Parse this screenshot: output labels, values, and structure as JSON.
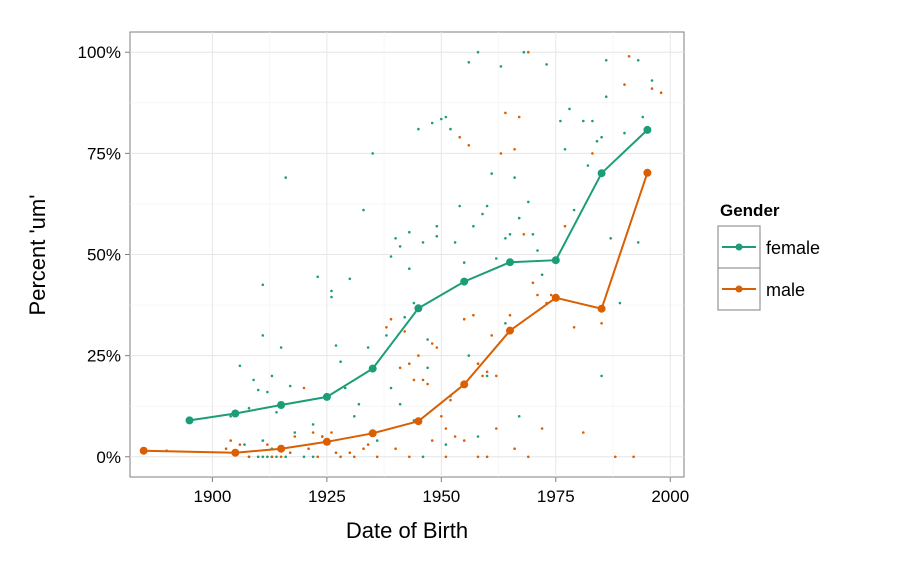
{
  "chart_data": {
    "type": "scatter",
    "title": "",
    "xlabel": "Date of Birth",
    "ylabel": "Percent 'um'",
    "xlim": [
      1882,
      2003
    ],
    "ylim": [
      -0.05,
      1.05
    ],
    "x_ticks": [
      1900,
      1925,
      1950,
      1975,
      2000
    ],
    "x_tick_labels": [
      "1900",
      "1925",
      "1950",
      "1975",
      "2000"
    ],
    "y_ticks": [
      0,
      0.25,
      0.5,
      0.75,
      1.0
    ],
    "y_tick_labels": [
      "0%",
      "25%",
      "50%",
      "75%",
      "100%"
    ],
    "grid": true,
    "legend": {
      "title": "Gender",
      "position": "right"
    },
    "series": [
      {
        "name": "female",
        "color": "#1B9E77",
        "line": {
          "x": [
            1895,
            1905,
            1915,
            1925,
            1935,
            1945,
            1955,
            1965,
            1975,
            1985,
            1995
          ],
          "y": [
            0.09,
            0.107,
            0.128,
            0.148,
            0.218,
            0.367,
            0.433,
            0.481,
            0.486,
            0.701,
            0.808
          ]
        },
        "points": [
          [
            1906,
            0.225
          ],
          [
            1909,
            0.19
          ],
          [
            1911,
            0.425
          ],
          [
            1911,
            0.3
          ],
          [
            1915,
            0.27
          ],
          [
            1916,
            0.69
          ],
          [
            1913,
            0.2
          ],
          [
            1917,
            0.175
          ],
          [
            1910,
            0.165
          ],
          [
            1912,
            0.16
          ],
          [
            1908,
            0.12
          ],
          [
            1914,
            0.11
          ],
          [
            1904,
            0.1
          ],
          [
            1918,
            0.06
          ],
          [
            1911,
            0.04
          ],
          [
            1907,
            0.03
          ],
          [
            1913,
            0.02
          ],
          [
            1908,
            0.0
          ],
          [
            1910,
            0.0
          ],
          [
            1911,
            0.0
          ],
          [
            1912,
            0.0
          ],
          [
            1913,
            0.0
          ],
          [
            1914,
            0.0
          ],
          [
            1916,
            0.0
          ],
          [
            1920,
            0.0
          ],
          [
            1922,
            0.0
          ],
          [
            1923,
            0.445
          ],
          [
            1926,
            0.41
          ],
          [
            1926,
            0.395
          ],
          [
            1927,
            0.275
          ],
          [
            1928,
            0.235
          ],
          [
            1930,
            0.44
          ],
          [
            1933,
            0.61
          ],
          [
            1934,
            0.27
          ],
          [
            1935,
            0.75
          ],
          [
            1929,
            0.17
          ],
          [
            1932,
            0.13
          ],
          [
            1922,
            0.08
          ],
          [
            1924,
            0.05
          ],
          [
            1931,
            0.1
          ],
          [
            1936,
            0.04
          ],
          [
            1938,
            0.3
          ],
          [
            1939,
            0.495
          ],
          [
            1940,
            0.54
          ],
          [
            1941,
            0.52
          ],
          [
            1942,
            0.345
          ],
          [
            1943,
            0.555
          ],
          [
            1943,
            0.465
          ],
          [
            1944,
            0.38
          ],
          [
            1945,
            0.81
          ],
          [
            1946,
            0.53
          ],
          [
            1947,
            0.29
          ],
          [
            1948,
            0.825
          ],
          [
            1949,
            0.57
          ],
          [
            1949,
            0.545
          ],
          [
            1950,
            0.835
          ],
          [
            1951,
            0.84
          ],
          [
            1952,
            0.81
          ],
          [
            1953,
            0.53
          ],
          [
            1954,
            0.62
          ],
          [
            1955,
            0.48
          ],
          [
            1956,
            0.975
          ],
          [
            1957,
            0.57
          ],
          [
            1958,
            1.0
          ],
          [
            1959,
            0.6
          ],
          [
            1960,
            0.62
          ],
          [
            1961,
            0.7
          ],
          [
            1962,
            0.49
          ],
          [
            1963,
            0.965
          ],
          [
            1964,
            0.54
          ],
          [
            1965,
            0.55
          ],
          [
            1966,
            0.69
          ],
          [
            1967,
            0.59
          ],
          [
            1968,
            1.0
          ],
          [
            1969,
            0.63
          ],
          [
            1970,
            0.55
          ],
          [
            1971,
            0.51
          ],
          [
            1972,
            0.45
          ],
          [
            1973,
            0.97
          ],
          [
            1976,
            0.83
          ],
          [
            1977,
            0.76
          ],
          [
            1978,
            0.86
          ],
          [
            1979,
            0.61
          ],
          [
            1981,
            0.83
          ],
          [
            1982,
            0.72
          ],
          [
            1983,
            0.83
          ],
          [
            1984,
            0.78
          ],
          [
            1985,
            0.79
          ],
          [
            1986,
            0.89
          ],
          [
            1986,
            0.98
          ],
          [
            1987,
            0.54
          ],
          [
            1989,
            0.38
          ],
          [
            1990,
            0.8
          ],
          [
            1993,
            0.53
          ],
          [
            1993,
            0.98
          ],
          [
            1994,
            0.84
          ],
          [
            1996,
            0.93
          ],
          [
            1939,
            0.17
          ],
          [
            1941,
            0.13
          ],
          [
            1944,
            0.09
          ],
          [
            1947,
            0.22
          ],
          [
            1952,
            0.15
          ],
          [
            1956,
            0.25
          ],
          [
            1960,
            0.2
          ],
          [
            1964,
            0.33
          ],
          [
            1967,
            0.1
          ],
          [
            1985,
            0.2
          ],
          [
            1946,
            0.0
          ],
          [
            1951,
            0.03
          ],
          [
            1958,
            0.05
          ]
        ]
      },
      {
        "name": "male",
        "color": "#D95F02",
        "line": {
          "x": [
            1885,
            1905,
            1915,
            1925,
            1935,
            1945,
            1955,
            1965,
            1975,
            1985,
            1995
          ],
          "y": [
            0.015,
            0.01,
            0.02,
            0.037,
            0.058,
            0.088,
            0.179,
            0.312,
            0.393,
            0.366,
            0.702
          ]
        },
        "points": [
          [
            1890,
            0.015
          ],
          [
            1903,
            0.02
          ],
          [
            1904,
            0.04
          ],
          [
            1906,
            0.03
          ],
          [
            1912,
            0.03
          ],
          [
            1915,
            0.0
          ],
          [
            1918,
            0.05
          ],
          [
            1920,
            0.17
          ],
          [
            1921,
            0.02
          ],
          [
            1922,
            0.06
          ],
          [
            1924,
            0.05
          ],
          [
            1926,
            0.06
          ],
          [
            1927,
            0.01
          ],
          [
            1928,
            0.0
          ],
          [
            1930,
            0.01
          ],
          [
            1933,
            0.02
          ],
          [
            1936,
            0.0
          ],
          [
            1938,
            0.32
          ],
          [
            1939,
            0.34
          ],
          [
            1941,
            0.22
          ],
          [
            1942,
            0.31
          ],
          [
            1943,
            0.23
          ],
          [
            1944,
            0.19
          ],
          [
            1945,
            0.25
          ],
          [
            1946,
            0.19
          ],
          [
            1947,
            0.18
          ],
          [
            1948,
            0.28
          ],
          [
            1949,
            0.27
          ],
          [
            1950,
            0.1
          ],
          [
            1951,
            0.07
          ],
          [
            1952,
            0.14
          ],
          [
            1953,
            0.05
          ],
          [
            1954,
            0.79
          ],
          [
            1955,
            0.34
          ],
          [
            1956,
            0.77
          ],
          [
            1957,
            0.35
          ],
          [
            1958,
            0.23
          ],
          [
            1959,
            0.2
          ],
          [
            1960,
            0.21
          ],
          [
            1961,
            0.3
          ],
          [
            1962,
            0.2
          ],
          [
            1963,
            0.75
          ],
          [
            1964,
            0.85
          ],
          [
            1965,
            0.35
          ],
          [
            1966,
            0.76
          ],
          [
            1967,
            0.84
          ],
          [
            1968,
            0.55
          ],
          [
            1969,
            1.0
          ],
          [
            1970,
            0.43
          ],
          [
            1971,
            0.4
          ],
          [
            1972,
            0.07
          ],
          [
            1973,
            0.38
          ],
          [
            1974,
            0.4
          ],
          [
            1977,
            0.57
          ],
          [
            1979,
            0.32
          ],
          [
            1981,
            0.06
          ],
          [
            1983,
            0.75
          ],
          [
            1985,
            0.33
          ],
          [
            1988,
            0.0
          ],
          [
            1990,
            0.92
          ],
          [
            1991,
            0.99
          ],
          [
            1992,
            0.0
          ],
          [
            1996,
            0.91
          ],
          [
            1998,
            0.9
          ],
          [
            1940,
            0.02
          ],
          [
            1943,
            0.0
          ],
          [
            1948,
            0.04
          ],
          [
            1951,
            0.0
          ],
          [
            1955,
            0.04
          ],
          [
            1958,
            0.0
          ],
          [
            1962,
            0.07
          ],
          [
            1966,
            0.02
          ],
          [
            1969,
            0.0
          ],
          [
            1913,
            0.0
          ],
          [
            1917,
            0.01
          ],
          [
            1923,
            0.0
          ],
          [
            1931,
            0.0
          ],
          [
            1934,
            0.03
          ],
          [
            1908,
            0.0
          ],
          [
            1960,
            0.0
          ]
        ]
      }
    ]
  }
}
